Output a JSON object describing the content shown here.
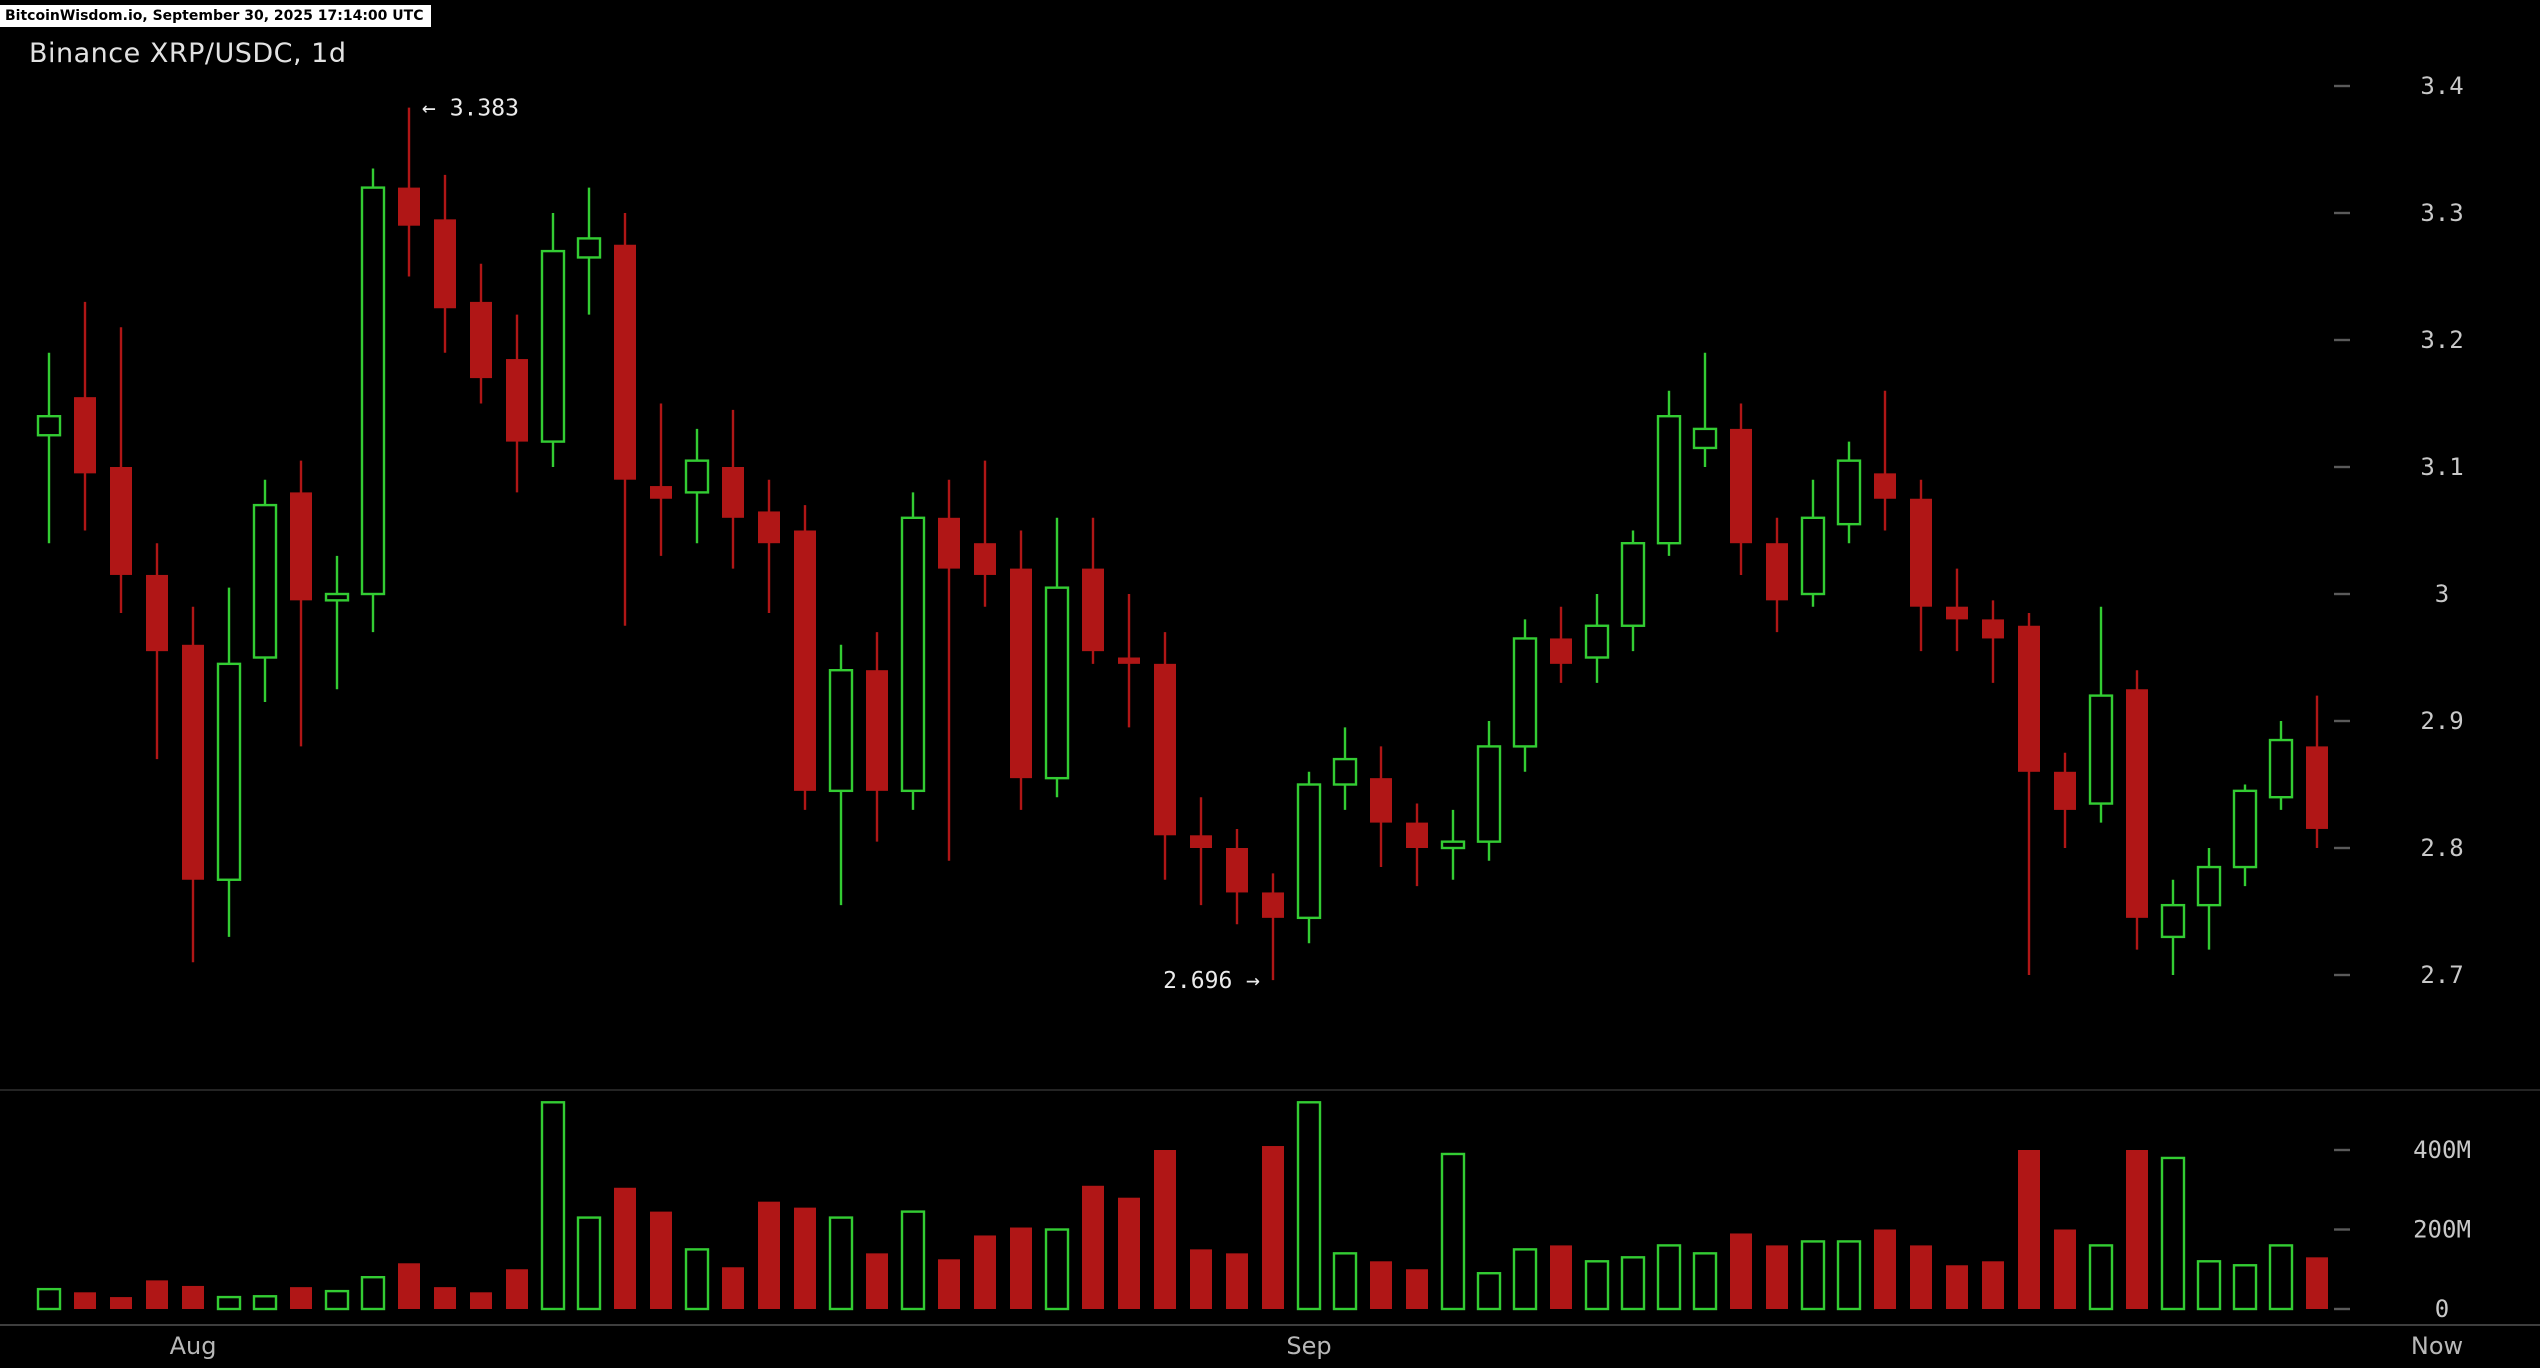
{
  "header": {
    "stamp": "BitcoinWisdom.io, September 30, 2025 17:14:00 UTC",
    "title": "Binance XRP/USDC, 1d"
  },
  "colors": {
    "background": "#000000",
    "up": "#33cc33",
    "down": "#b01616",
    "axis_text": "#c8c8c8",
    "tick_dash": "#5a5a5a",
    "month_text": "#b8b8b8",
    "annotation_text": "#ebebeb",
    "separator_panes": "#242424",
    "separator_bottom": "#3e3e3e"
  },
  "chart_data": {
    "type": "candlestick",
    "title": "Binance XRP/USDC, 1d",
    "interval": "1d",
    "legend_position": "none",
    "grid": false,
    "price_axis": {
      "side": "right",
      "ticks": [
        {
          "value": 3.4,
          "label": "3.4"
        },
        {
          "value": 3.3,
          "label": "3.3"
        },
        {
          "value": 3.2,
          "label": "3.2"
        },
        {
          "value": 3.1,
          "label": "3.1"
        },
        {
          "value": 3.0,
          "label": "3"
        },
        {
          "value": 2.9,
          "label": "2.9"
        },
        {
          "value": 2.8,
          "label": "2.8"
        },
        {
          "value": 2.7,
          "label": "2.7"
        }
      ]
    },
    "volume_axis": {
      "side": "right",
      "unit": "M",
      "ticks": [
        {
          "value": 400,
          "label": "400M"
        },
        {
          "value": 200,
          "label": "200M"
        },
        {
          "value": 0,
          "label": "0"
        }
      ]
    },
    "x_labels": [
      {
        "label": "Aug",
        "candle_index": 4
      },
      {
        "label": "Sep",
        "candle_index": 35
      },
      {
        "label": "Now",
        "candle_index": null,
        "align": "right-axis"
      }
    ],
    "annotations": [
      {
        "text": "← 3.383",
        "value": 3.383,
        "candle_index": 10,
        "side": "right"
      },
      {
        "text": "2.696 →",
        "value": 2.696,
        "candle_index": 34,
        "side": "left"
      }
    ],
    "columns": [
      "open",
      "high",
      "low",
      "close",
      "volume_M"
    ],
    "candles": [
      [
        3.125,
        3.19,
        3.04,
        3.14,
        50
      ],
      [
        3.155,
        3.23,
        3.05,
        3.095,
        42
      ],
      [
        3.1,
        3.21,
        2.985,
        3.015,
        30
      ],
      [
        3.015,
        3.04,
        2.87,
        2.955,
        72
      ],
      [
        2.96,
        2.99,
        2.71,
        2.775,
        58
      ],
      [
        2.775,
        3.005,
        2.73,
        2.945,
        30
      ],
      [
        2.95,
        3.09,
        2.915,
        3.07,
        32
      ],
      [
        3.08,
        3.105,
        2.88,
        2.995,
        55
      ],
      [
        2.995,
        3.03,
        2.925,
        3.0,
        45
      ],
      [
        3.0,
        3.335,
        2.97,
        3.32,
        80
      ],
      [
        3.32,
        3.383,
        3.25,
        3.29,
        115
      ],
      [
        3.295,
        3.33,
        3.19,
        3.225,
        55
      ],
      [
        3.23,
        3.26,
        3.15,
        3.17,
        42
      ],
      [
        3.185,
        3.22,
        3.08,
        3.12,
        100
      ],
      [
        3.12,
        3.3,
        3.1,
        3.27,
        520
      ],
      [
        3.265,
        3.32,
        3.22,
        3.28,
        230
      ],
      [
        3.275,
        3.3,
        2.975,
        3.09,
        305
      ],
      [
        3.085,
        3.15,
        3.03,
        3.075,
        245
      ],
      [
        3.08,
        3.13,
        3.04,
        3.105,
        150
      ],
      [
        3.1,
        3.145,
        3.02,
        3.06,
        105
      ],
      [
        3.065,
        3.09,
        2.985,
        3.04,
        270
      ],
      [
        3.05,
        3.07,
        2.83,
        2.845,
        255
      ],
      [
        2.845,
        2.96,
        2.755,
        2.94,
        230
      ],
      [
        2.94,
        2.97,
        2.805,
        2.845,
        140
      ],
      [
        2.845,
        3.08,
        2.83,
        3.06,
        245
      ],
      [
        3.06,
        3.09,
        2.79,
        3.02,
        125
      ],
      [
        3.04,
        3.105,
        2.99,
        3.015,
        185
      ],
      [
        3.02,
        3.05,
        2.83,
        2.855,
        205
      ],
      [
        2.855,
        3.06,
        2.84,
        3.005,
        200
      ],
      [
        3.02,
        3.06,
        2.945,
        2.955,
        310
      ],
      [
        2.95,
        3.0,
        2.895,
        2.945,
        280
      ],
      [
        2.945,
        2.97,
        2.775,
        2.81,
        400
      ],
      [
        2.81,
        2.84,
        2.755,
        2.8,
        150
      ],
      [
        2.8,
        2.815,
        2.74,
        2.765,
        140
      ],
      [
        2.765,
        2.78,
        2.696,
        2.745,
        410
      ],
      [
        2.745,
        2.86,
        2.725,
        2.85,
        520
      ],
      [
        2.85,
        2.895,
        2.83,
        2.87,
        140
      ],
      [
        2.855,
        2.88,
        2.785,
        2.82,
        120
      ],
      [
        2.82,
        2.835,
        2.77,
        2.8,
        100
      ],
      [
        2.8,
        2.83,
        2.775,
        2.805,
        390
      ],
      [
        2.805,
        2.9,
        2.79,
        2.88,
        90
      ],
      [
        2.88,
        2.98,
        2.86,
        2.965,
        150
      ],
      [
        2.965,
        2.99,
        2.93,
        2.945,
        160
      ],
      [
        2.95,
        3.0,
        2.93,
        2.975,
        120
      ],
      [
        2.975,
        3.05,
        2.955,
        3.04,
        130
      ],
      [
        3.04,
        3.16,
        3.03,
        3.14,
        160
      ],
      [
        3.115,
        3.19,
        3.1,
        3.13,
        140
      ],
      [
        3.13,
        3.15,
        3.015,
        3.04,
        190
      ],
      [
        3.04,
        3.06,
        2.97,
        2.995,
        160
      ],
      [
        3.0,
        3.09,
        2.99,
        3.06,
        170
      ],
      [
        3.055,
        3.12,
        3.04,
        3.105,
        170
      ],
      [
        3.095,
        3.16,
        3.05,
        3.075,
        200
      ],
      [
        3.075,
        3.09,
        2.955,
        2.99,
        160
      ],
      [
        2.99,
        3.02,
        2.955,
        2.98,
        110
      ],
      [
        2.98,
        2.995,
        2.93,
        2.965,
        120
      ],
      [
        2.975,
        2.985,
        2.7,
        2.86,
        400
      ],
      [
        2.86,
        2.875,
        2.8,
        2.83,
        200
      ],
      [
        2.835,
        2.99,
        2.82,
        2.92,
        160
      ],
      [
        2.925,
        2.94,
        2.72,
        2.745,
        400
      ],
      [
        2.73,
        2.775,
        2.7,
        2.755,
        380
      ],
      [
        2.755,
        2.8,
        2.72,
        2.785,
        120
      ],
      [
        2.785,
        2.85,
        2.77,
        2.845,
        110
      ],
      [
        2.84,
        2.9,
        2.83,
        2.885,
        160
      ],
      [
        2.88,
        2.92,
        2.8,
        2.815,
        130
      ]
    ]
  }
}
